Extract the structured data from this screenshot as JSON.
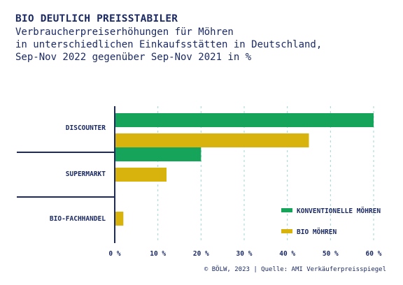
{
  "title": "BIO DEUTLICH PREISSTABILER",
  "subtitle_lines": [
    "Verbraucherpreiserhöhungen für Möhren",
    "in unterschiedlichen Einkaufsstätten in Deutschland,",
    "Sep-Nov 2022 gegenüber Sep-Nov 2021 in %"
  ],
  "footer": "© BÖLW, 2023 | Quelle: AMI Verkäuferpreisspiegel",
  "colors": {
    "navy": "#1b2a63",
    "green": "#16a35a",
    "yellow": "#d8b30e",
    "grid": "#9fd6d4"
  },
  "chart_data": {
    "type": "bar",
    "orientation": "horizontal",
    "categories": [
      "DISCOUNTER",
      "SUPERMARKT",
      "BIO-FACHHANDEL"
    ],
    "series": [
      {
        "name": "KONVENTIONELLE MÖHREN",
        "color": "#16a35a",
        "values": [
          60,
          20,
          null
        ]
      },
      {
        "name": "BIO MÖHREN",
        "color": "#d8b30e",
        "values": [
          45,
          12,
          2
        ]
      }
    ],
    "xlim": [
      0,
      60
    ],
    "ticks": [
      0,
      10,
      20,
      30,
      40,
      50,
      60
    ],
    "tick_labels": [
      "0 %",
      "10 %",
      "20 %",
      "30 %",
      "40 %",
      "50 %",
      "60 %"
    ],
    "grid": "vertical dashed",
    "legend_position": "bottom-right"
  }
}
